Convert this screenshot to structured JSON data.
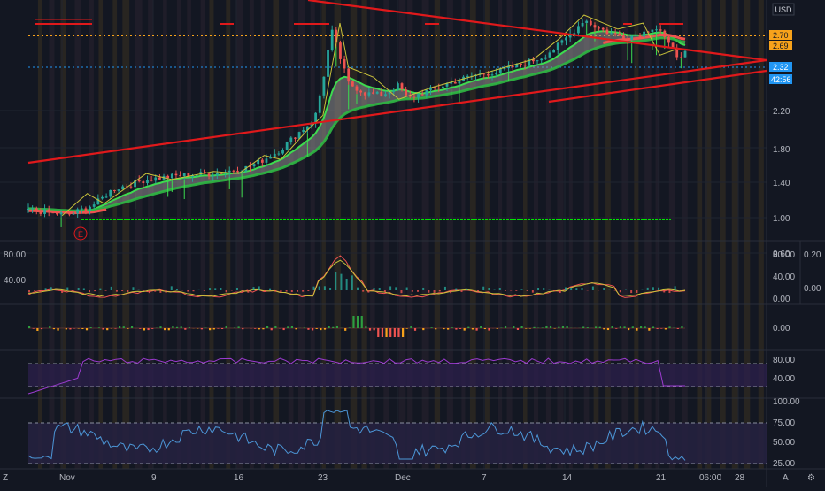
{
  "header": {
    "currency": "USD"
  },
  "colors": {
    "bg": "#131722",
    "grid": "#1f2430",
    "up": "#26a69a",
    "down": "#ef5350",
    "trend": "#e0191b",
    "ribbon_up": "#3ddc4f",
    "ribbon_fill": "#8f8f8f",
    "orange": "#f7a21b",
    "blue": "#2196f3",
    "purple": "#9c3bd0",
    "rsi_line": "#4c97d8",
    "support": "#00e600"
  },
  "chart_data": [
    {
      "type": "candlestick",
      "pane": "price",
      "y_ticks": [
        "2.20",
        "1.80",
        "1.40",
        "1.00",
        "0.60"
      ],
      "x_ticks": [
        "Nov",
        "9",
        "16",
        "23",
        "Dec",
        "7",
        "14",
        "21",
        "06:00",
        "28"
      ],
      "ylim": [
        0.45,
        2.85
      ],
      "close_path": [
        [
          0,
          0.76
        ],
        [
          3,
          0.72
        ],
        [
          5,
          0.71
        ],
        [
          8,
          0.82
        ],
        [
          10,
          0.96
        ],
        [
          14,
          1.06
        ],
        [
          18,
          1.1
        ],
        [
          22,
          1.12
        ],
        [
          26,
          1.18
        ],
        [
          28,
          1.26
        ],
        [
          30,
          1.36
        ],
        [
          32,
          1.52
        ],
        [
          34,
          1.66
        ],
        [
          35,
          2.05
        ],
        [
          36,
          2.55
        ],
        [
          37,
          2.28
        ],
        [
          38,
          2.02
        ],
        [
          40,
          1.92
        ],
        [
          42,
          1.9
        ],
        [
          44,
          2.0
        ],
        [
          45,
          1.86
        ],
        [
          47,
          1.93
        ],
        [
          50,
          2.02
        ],
        [
          53,
          2.1
        ],
        [
          56,
          2.14
        ],
        [
          59,
          2.22
        ],
        [
          61,
          2.28
        ],
        [
          63,
          2.4
        ],
        [
          65,
          2.56
        ],
        [
          66,
          2.66
        ],
        [
          67,
          2.6
        ],
        [
          69,
          2.52
        ],
        [
          71,
          2.48
        ],
        [
          73,
          2.52
        ],
        [
          74,
          2.58
        ],
        [
          75,
          2.56
        ],
        [
          76,
          2.4
        ],
        [
          77,
          2.3
        ],
        [
          78,
          2.32
        ]
      ],
      "orange_dotted_levels": [
        2.7,
        2.69
      ],
      "blue_dotted_level": 2.32,
      "support_level": 0.56,
      "trend_upper": [
        [
          0,
          3.2
        ],
        [
          82,
          2.4
        ]
      ],
      "trend_lower": [
        [
          0,
          1.2
        ],
        [
          82,
          2.32
        ]
      ],
      "price_labels": {
        "p270": "2.70",
        "p269": "2.69",
        "p232": "2.32",
        "timer": "42:56"
      },
      "earnings_marker": "E"
    },
    {
      "type": "line",
      "pane": "stochastic",
      "y_ticks_left": [
        "80.00",
        "40.00"
      ],
      "y_ticks_right": [
        "80.00",
        "40.00",
        "0.00"
      ],
      "y_ticks_far_right": [
        "0.20",
        "0.00"
      ],
      "ylim": [
        0,
        100
      ]
    },
    {
      "type": "bar",
      "pane": "histogram",
      "y_ticks": [
        "0.00"
      ]
    },
    {
      "type": "line",
      "pane": "rsi_band",
      "y_ticks": [
        "80.00",
        "40.00"
      ],
      "ylim": [
        0,
        100
      ]
    },
    {
      "type": "line",
      "pane": "rsi",
      "y_ticks": [
        "100.00",
        "75.00",
        "50.00",
        "25.00"
      ],
      "ylim": [
        20,
        102
      ]
    }
  ],
  "footer": {
    "left_btn": "Z",
    "right_btn": "A",
    "settings": "⚙"
  }
}
